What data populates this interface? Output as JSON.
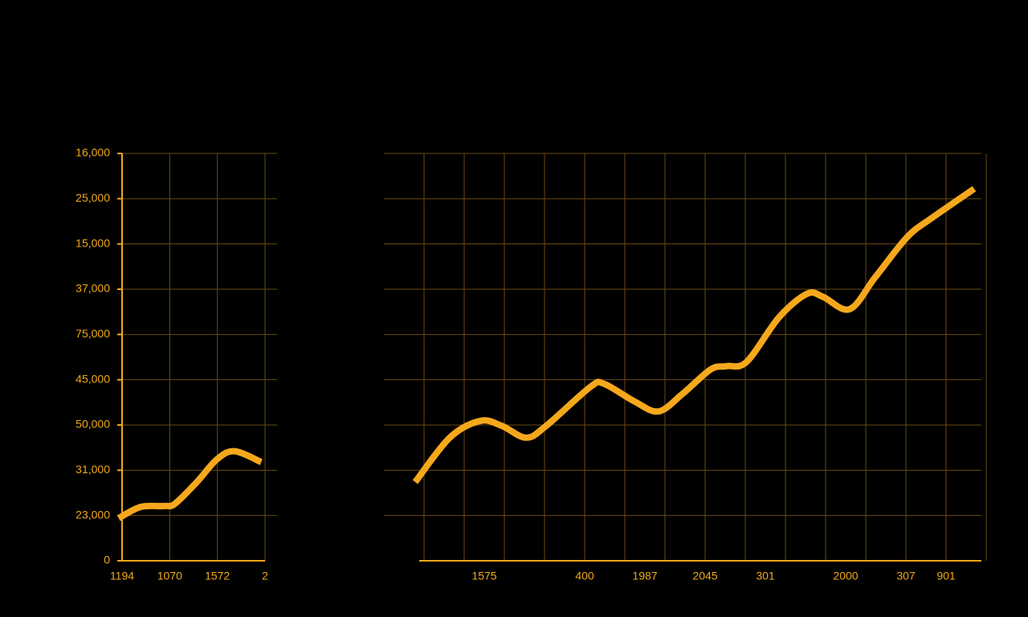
{
  "chart_data": [
    {
      "type": "line",
      "categories": [
        "1194",
        "1070",
        "1572",
        "2"
      ],
      "y_categories": [
        "0",
        "23,000",
        "31,000",
        "50,000",
        "45,000",
        "75,000",
        "37,000",
        "15,000",
        "25,000",
        "16,000"
      ],
      "ylim": [
        0,
        9
      ],
      "grid": true,
      "series": [
        {
          "color": "#f5a81c",
          "x": [
            -0.07,
            0.39,
            0.89,
            1.11,
            1.57,
            1.99,
            2.36,
            2.92
          ],
          "values": [
            0.94,
            1.19,
            1.21,
            1.26,
            1.74,
            2.24,
            2.42,
            2.18
          ]
        }
      ]
    },
    {
      "type": "line",
      "categories": [
        null,
        null,
        null,
        "1575",
        null,
        null,
        null,
        null,
        "400",
        null,
        null,
        "1987",
        null,
        null,
        "2045",
        null,
        null,
        "301",
        null,
        null,
        null,
        "2000",
        null,
        null,
        "307",
        null,
        "901",
        null,
        null
      ],
      "ylim": [
        0,
        9
      ],
      "grid": true,
      "series": [
        {
          "color": "#f5a81c",
          "x": [
            -0.44,
            1.28,
            2.8,
            3.88,
            5.08,
            6.08,
            8.28,
            8.96,
            10.48,
            11.68,
            12.88,
            14.28,
            15.08,
            16.08,
            17.68,
            19.08,
            19.88,
            21.2,
            22.48,
            24.08,
            25.28,
            27.4
          ],
          "values": [
            1.74,
            2.72,
            3.09,
            2.98,
            2.72,
            2.98,
            3.84,
            3.91,
            3.52,
            3.3,
            3.69,
            4.23,
            4.3,
            4.4,
            5.38,
            5.9,
            5.83,
            5.56,
            6.27,
            7.16,
            7.57,
            8.22
          ]
        }
      ]
    }
  ]
}
